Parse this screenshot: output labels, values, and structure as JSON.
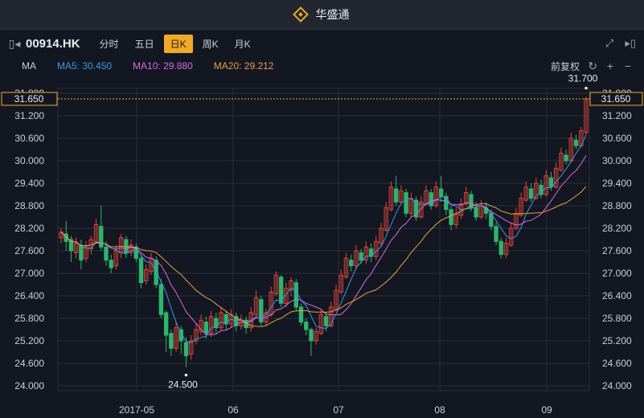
{
  "app": {
    "title": "华盛通"
  },
  "toolbar": {
    "ticker": "00914.HK",
    "tabs": [
      "分时",
      "五日",
      "日K",
      "周K",
      "月K"
    ],
    "active_tab": "日K"
  },
  "indicators": {
    "ma_label": "MA",
    "ma5": "MA5: 30.450",
    "ma10": "MA10: 29.880",
    "ma20": "MA20: 29.212",
    "adjust_label": "前复权"
  },
  "colors": {
    "up": "#e0453a",
    "down": "#2fb46e",
    "ma5": "#3b97e5",
    "ma10": "#d66ae0",
    "ma20": "#e8a040",
    "accent": "#f0a929"
  },
  "chart_data": {
    "type": "candlestick",
    "y_ticks": [
      "31.800",
      "31.200",
      "30.600",
      "30.000",
      "29.400",
      "28.800",
      "28.200",
      "27.600",
      "27.000",
      "26.400",
      "25.800",
      "25.200",
      "24.600",
      "24.000"
    ],
    "ylim": [
      24.0,
      31.8
    ],
    "x_labels": [
      "2017-05",
      "06",
      "07",
      "08",
      "09"
    ],
    "crosshair_value": "31.650",
    "max_label": "31.700",
    "min_label": "24.500",
    "candles": [
      [
        27.95,
        28.1,
        27.8,
        28.2
      ],
      [
        28.05,
        27.85,
        27.6,
        28.4
      ],
      [
        27.9,
        27.6,
        27.3,
        28.0
      ],
      [
        27.55,
        27.8,
        27.4,
        27.95
      ],
      [
        27.75,
        27.35,
        27.1,
        27.9
      ],
      [
        27.4,
        27.7,
        27.3,
        27.85
      ],
      [
        27.65,
        27.9,
        27.5,
        28.0
      ],
      [
        27.85,
        28.3,
        27.8,
        28.45
      ],
      [
        28.25,
        27.7,
        27.6,
        28.8
      ],
      [
        27.7,
        27.35,
        27.2,
        27.85
      ],
      [
        27.35,
        27.15,
        27.0,
        27.5
      ],
      [
        27.2,
        27.6,
        27.1,
        27.75
      ],
      [
        27.55,
        27.95,
        27.4,
        28.05
      ],
      [
        27.9,
        27.55,
        27.4,
        28.0
      ],
      [
        27.55,
        27.75,
        27.45,
        27.9
      ],
      [
        27.7,
        27.4,
        27.3,
        27.8
      ],
      [
        27.4,
        26.75,
        26.6,
        27.5
      ],
      [
        26.8,
        27.1,
        26.7,
        27.25
      ],
      [
        27.05,
        27.4,
        26.95,
        27.55
      ],
      [
        27.35,
        26.7,
        26.6,
        27.45
      ],
      [
        26.7,
        25.9,
        25.8,
        26.85
      ],
      [
        25.95,
        25.35,
        24.9,
        26.0
      ],
      [
        25.4,
        25.0,
        24.8,
        25.5
      ],
      [
        25.0,
        25.55,
        24.9,
        25.7
      ],
      [
        25.5,
        25.2,
        24.85,
        25.6
      ],
      [
        25.15,
        24.8,
        24.5,
        25.3
      ],
      [
        24.85,
        25.2,
        24.7,
        25.35
      ],
      [
        25.2,
        25.5,
        25.1,
        25.65
      ],
      [
        25.45,
        25.75,
        25.35,
        25.9
      ],
      [
        25.7,
        25.4,
        25.25,
        25.85
      ],
      [
        25.4,
        25.85,
        25.3,
        26.0
      ],
      [
        25.8,
        25.55,
        25.4,
        25.95
      ],
      [
        25.55,
        25.95,
        25.45,
        26.1
      ],
      [
        25.9,
        25.65,
        25.5,
        26.0
      ],
      [
        25.65,
        25.9,
        25.55,
        26.05
      ],
      [
        25.85,
        25.6,
        25.45,
        25.95
      ],
      [
        25.6,
        25.75,
        25.5,
        25.9
      ],
      [
        25.75,
        25.55,
        25.4,
        25.85
      ],
      [
        25.55,
        25.95,
        25.45,
        26.1
      ],
      [
        25.9,
        26.35,
        25.85,
        26.55
      ],
      [
        26.3,
        25.7,
        25.6,
        26.4
      ],
      [
        25.7,
        25.95,
        25.6,
        26.05
      ],
      [
        25.9,
        26.5,
        25.85,
        26.65
      ],
      [
        26.45,
        26.95,
        26.4,
        27.05
      ],
      [
        26.9,
        26.2,
        26.1,
        26.95
      ],
      [
        26.2,
        26.6,
        26.1,
        26.75
      ],
      [
        26.55,
        26.8,
        26.4,
        26.9
      ],
      [
        26.75,
        26.1,
        26.0,
        26.85
      ],
      [
        26.1,
        25.7,
        25.6,
        26.2
      ],
      [
        25.7,
        25.5,
        25.35,
        25.8
      ],
      [
        25.5,
        25.2,
        24.8,
        25.55
      ],
      [
        25.2,
        25.45,
        25.1,
        25.55
      ],
      [
        25.4,
        25.9,
        25.35,
        26.05
      ],
      [
        25.85,
        25.6,
        25.45,
        25.95
      ],
      [
        25.6,
        26.1,
        25.55,
        26.25
      ],
      [
        26.05,
        26.55,
        26.0,
        26.7
      ],
      [
        26.5,
        26.95,
        26.45,
        27.1
      ],
      [
        26.9,
        27.4,
        26.85,
        27.55
      ],
      [
        27.35,
        27.2,
        27.05,
        27.5
      ],
      [
        27.2,
        27.6,
        27.1,
        27.75
      ],
      [
        27.55,
        27.35,
        27.25,
        27.65
      ],
      [
        27.35,
        27.7,
        27.25,
        27.85
      ],
      [
        27.65,
        27.45,
        27.3,
        27.8
      ],
      [
        27.45,
        27.85,
        27.35,
        28.0
      ],
      [
        27.8,
        28.2,
        27.7,
        28.35
      ],
      [
        28.15,
        28.75,
        28.1,
        28.9
      ],
      [
        28.7,
        29.3,
        28.65,
        29.45
      ],
      [
        29.25,
        28.9,
        28.8,
        29.6
      ],
      [
        28.9,
        29.2,
        28.85,
        29.35
      ],
      [
        29.15,
        28.6,
        28.5,
        29.25
      ],
      [
        28.6,
        29.0,
        28.5,
        29.15
      ],
      [
        28.95,
        28.5,
        28.4,
        29.05
      ],
      [
        28.5,
        28.9,
        28.45,
        29.05
      ],
      [
        28.85,
        29.2,
        28.8,
        29.35
      ],
      [
        29.15,
        28.8,
        28.7,
        29.25
      ],
      [
        28.8,
        29.3,
        28.75,
        29.45
      ],
      [
        29.25,
        29.05,
        28.9,
        29.6
      ],
      [
        29.05,
        28.7,
        28.55,
        29.15
      ],
      [
        28.7,
        28.3,
        28.15,
        28.8
      ],
      [
        28.3,
        28.6,
        28.2,
        28.75
      ],
      [
        28.55,
        28.85,
        28.45,
        29.0
      ],
      [
        28.85,
        29.15,
        28.8,
        29.3
      ],
      [
        29.1,
        28.75,
        28.65,
        29.2
      ],
      [
        28.75,
        28.5,
        28.4,
        28.9
      ],
      [
        28.5,
        28.8,
        28.45,
        28.95
      ],
      [
        28.75,
        28.6,
        28.45,
        28.9
      ],
      [
        28.6,
        28.25,
        28.15,
        28.7
      ],
      [
        28.25,
        27.85,
        27.75,
        28.35
      ],
      [
        27.85,
        27.5,
        27.4,
        27.95
      ],
      [
        27.5,
        27.8,
        27.4,
        27.95
      ],
      [
        27.75,
        28.2,
        27.7,
        28.35
      ],
      [
        28.2,
        28.6,
        28.15,
        28.75
      ],
      [
        28.55,
        29.0,
        28.5,
        29.15
      ],
      [
        28.95,
        29.3,
        28.9,
        29.45
      ],
      [
        29.25,
        29.0,
        28.9,
        29.4
      ],
      [
        29.0,
        29.4,
        28.95,
        29.55
      ],
      [
        29.35,
        29.1,
        29.0,
        29.5
      ],
      [
        29.1,
        29.6,
        29.05,
        29.75
      ],
      [
        29.55,
        29.3,
        29.2,
        29.7
      ],
      [
        29.3,
        29.8,
        29.25,
        29.95
      ],
      [
        29.75,
        30.2,
        29.7,
        30.35
      ],
      [
        30.15,
        30.0,
        29.9,
        30.3
      ],
      [
        30.0,
        30.6,
        29.95,
        30.75
      ],
      [
        30.55,
        30.4,
        30.3,
        30.7
      ],
      [
        30.4,
        30.8,
        30.35,
        30.9
      ],
      [
        30.75,
        31.65,
        30.7,
        31.7
      ]
    ]
  }
}
